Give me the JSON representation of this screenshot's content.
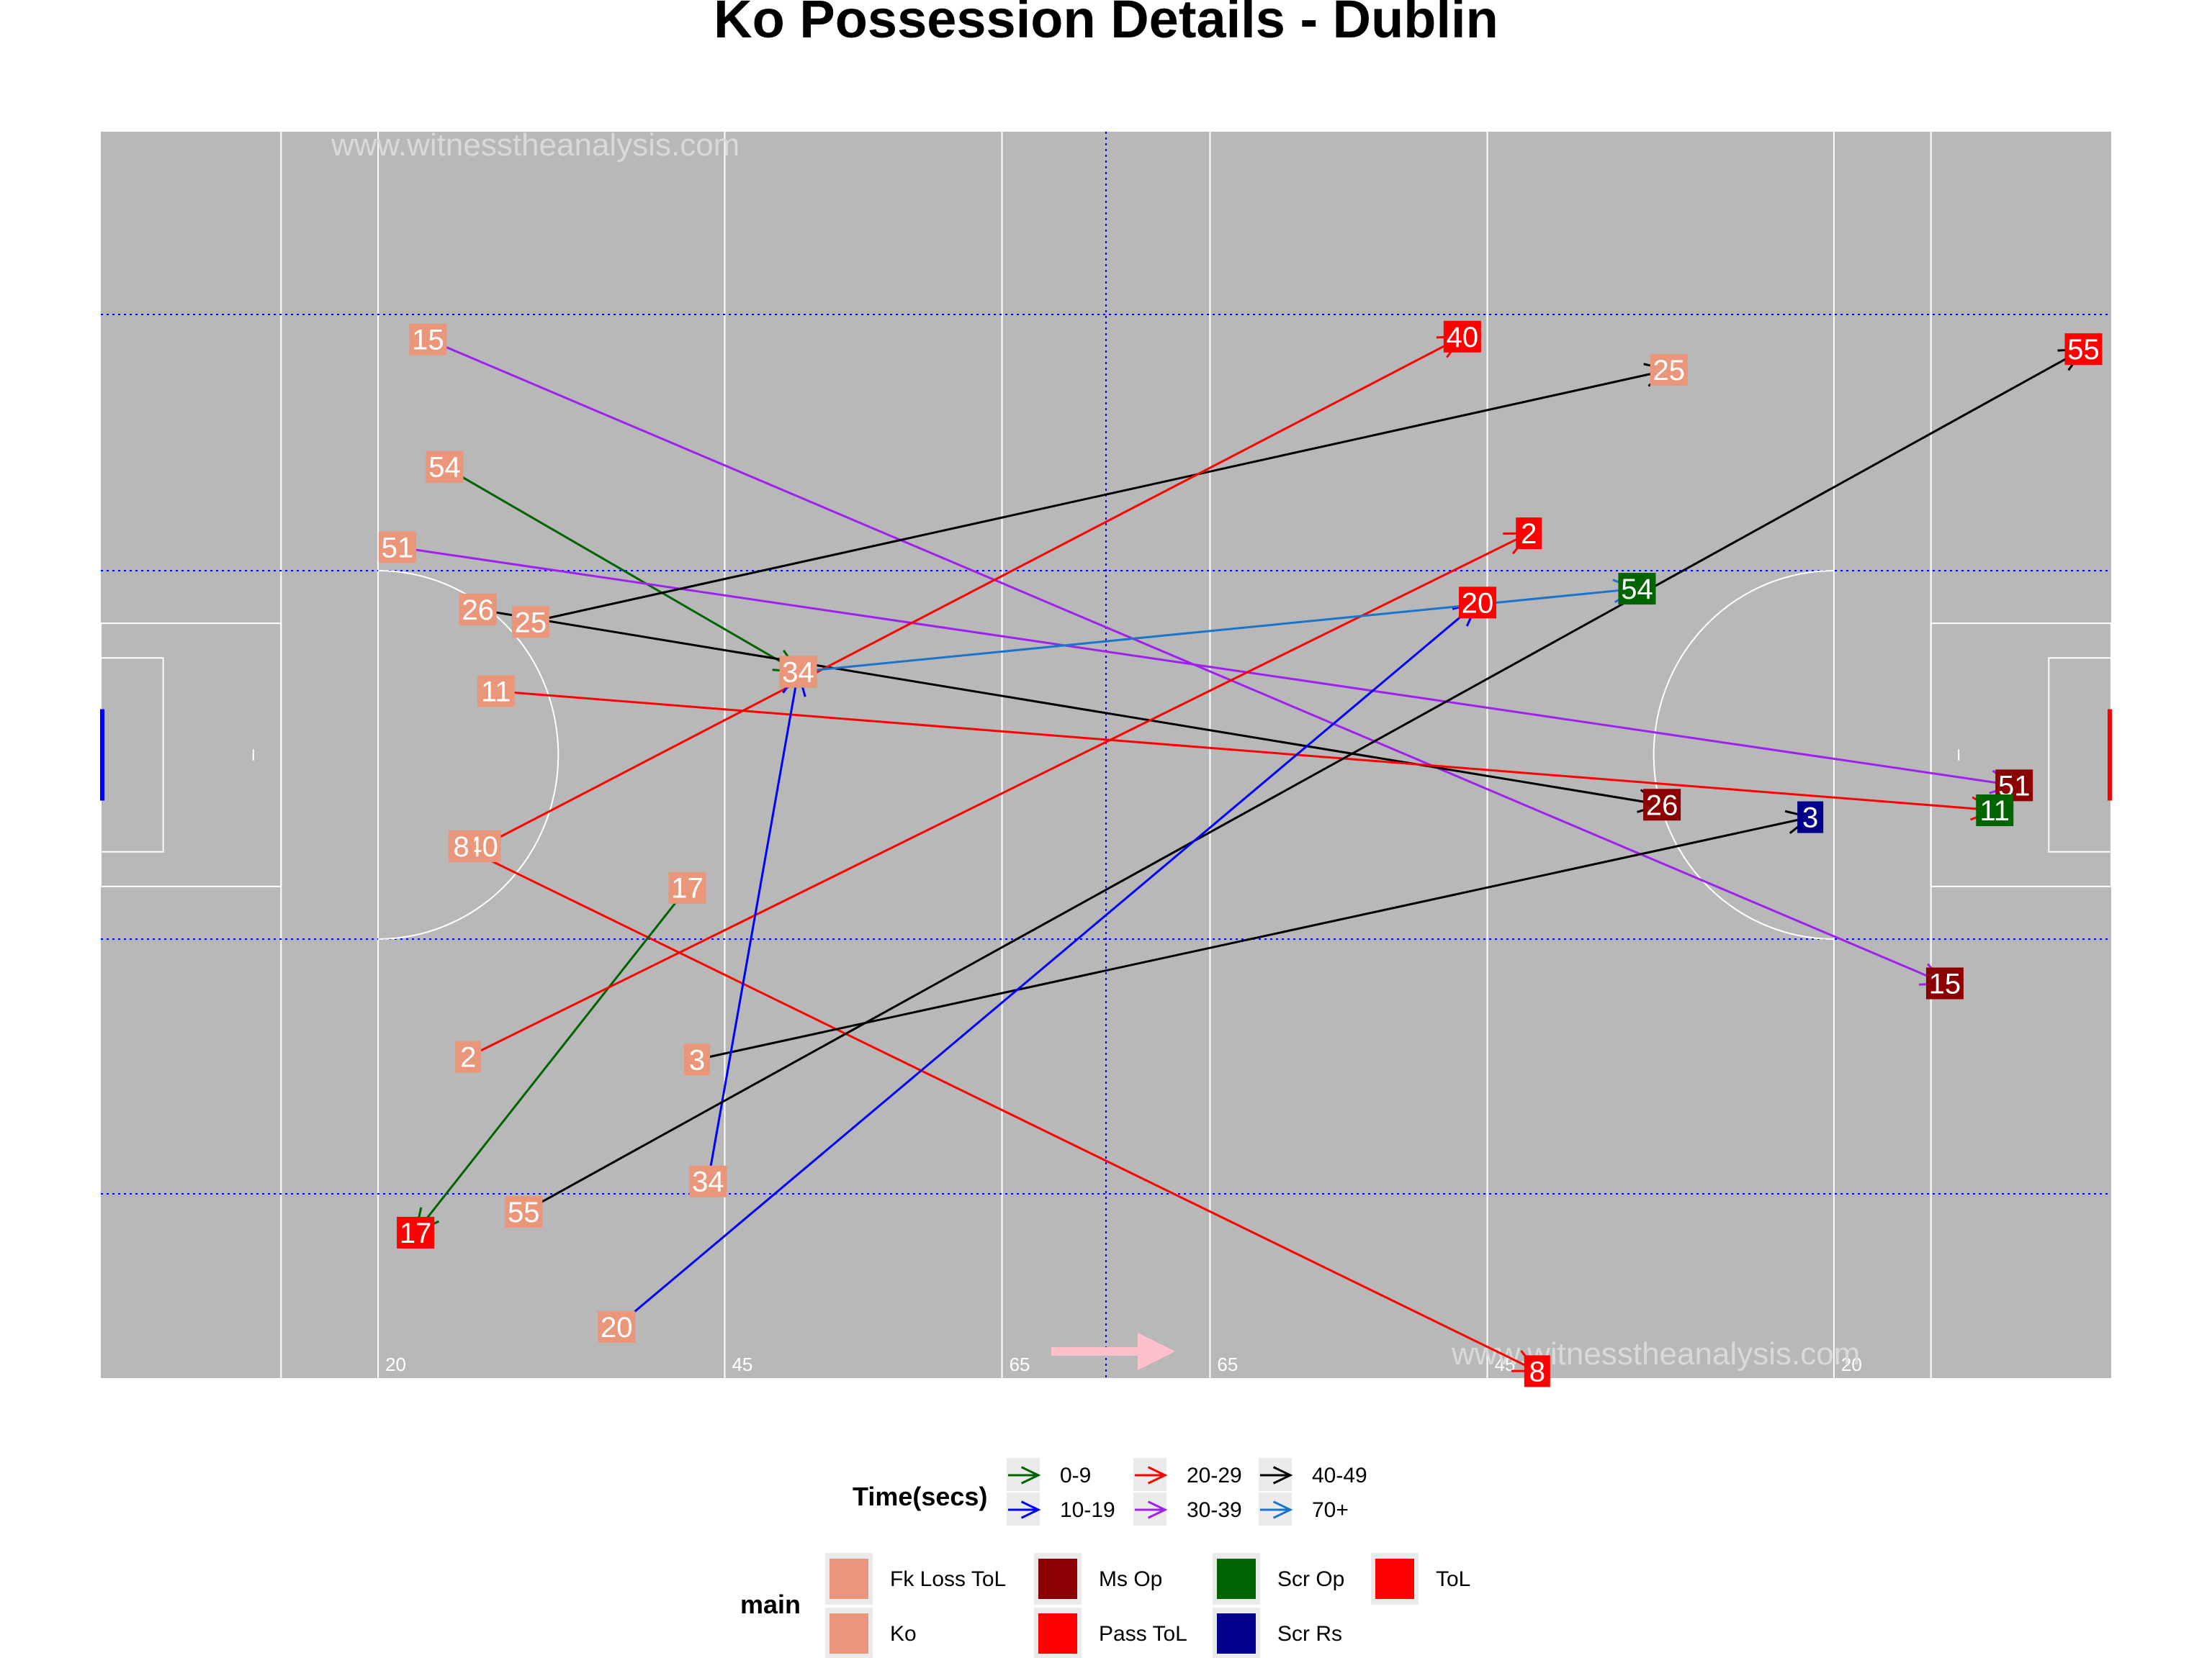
{
  "chart_data": {
    "type": "scatter",
    "title": "Ko Possession Details - Dublin",
    "watermarks": [
      "www.witnesstheanalysis.com",
      "www.witnesstheanalysis.com"
    ],
    "xlim": [
      0,
      145
    ],
    "ylim": [
      0,
      90
    ],
    "pitch_marks": [
      "20",
      "45",
      "65",
      "65",
      "45",
      "20"
    ],
    "direction_arrow_color": "#ffc0cb",
    "pitch_color": "#b8b8b8",
    "time_legend": {
      "title": "Time(secs)",
      "items": [
        {
          "label": "0-9",
          "color": "#006400"
        },
        {
          "label": "10-19",
          "color": "#0000ff"
        },
        {
          "label": "20-29",
          "color": "#ff0000"
        },
        {
          "label": "30-39",
          "color": "#a020f0"
        },
        {
          "label": "40-49",
          "color": "#000000"
        },
        {
          "label": "70+",
          "color": "#1874cd"
        }
      ]
    },
    "main_legend": {
      "title": "main",
      "items": [
        {
          "label": "Fk Loss ToL",
          "color": "#e9967a"
        },
        {
          "label": "Ko",
          "color": "#e9967a"
        },
        {
          "label": "Ms Op",
          "color": "#8b0000"
        },
        {
          "label": "Pass ToL",
          "color": "#ff0000"
        },
        {
          "label": "Scr Op",
          "color": "#006400"
        },
        {
          "label": "Scr Rs",
          "color": "#00008b"
        },
        {
          "label": "ToL",
          "color": "#ff0000"
        }
      ]
    },
    "possessions": [
      {
        "id": "15",
        "start": [
          23.6,
          75.0
        ],
        "end": [
          133.0,
          28.5
        ],
        "time": "30-39",
        "outcome": "Ms Op"
      },
      {
        "id": "54",
        "start": [
          24.8,
          65.8
        ],
        "end": [
          50.3,
          51.0
        ],
        "time": "0-9",
        "outcome": "Scr Op"
      },
      {
        "id": "51",
        "start": [
          21.4,
          60.0
        ],
        "end": [
          138.0,
          42.8
        ],
        "time": "30-39",
        "outcome": "Ms Op"
      },
      {
        "id": "26",
        "start": [
          27.2,
          55.5
        ],
        "end": [
          112.6,
          41.4
        ],
        "time": "40-49",
        "outcome": "Ms Op"
      },
      {
        "id": "25",
        "start": [
          31.0,
          54.6
        ],
        "end": [
          113.1,
          72.8
        ],
        "time": "40-49",
        "outcome": "Ko"
      },
      {
        "id": "11",
        "start": [
          28.5,
          49.6
        ],
        "end": [
          136.6,
          41.0
        ],
        "time": "20-29",
        "outcome": "Scr Op"
      },
      {
        "id": "40",
        "start": [
          27.5,
          38.4
        ],
        "end": [
          98.2,
          75.2
        ],
        "time": "20-29",
        "outcome": "ToL"
      },
      {
        "id": "8",
        "start": [
          26.0,
          38.4
        ],
        "end": [
          103.6,
          0.5
        ],
        "time": "20-29",
        "outcome": "ToL"
      },
      {
        "id": "17",
        "start": [
          42.3,
          35.4
        ],
        "end": [
          22.7,
          10.5
        ],
        "time": "0-9",
        "outcome": "ToL"
      },
      {
        "id": "2",
        "start": [
          26.5,
          23.2
        ],
        "end": [
          103.0,
          61.0
        ],
        "time": "20-29",
        "outcome": "ToL"
      },
      {
        "id": "3",
        "start": [
          43.0,
          23.0
        ],
        "end": [
          123.3,
          40.5
        ],
        "time": "40-49",
        "outcome": "Scr Rs"
      },
      {
        "id": "34",
        "start": [
          43.8,
          14.2
        ],
        "end": [
          50.3,
          51.0
        ],
        "time": "10-19",
        "outcome": "Ko"
      },
      {
        "id": "55",
        "start": [
          30.5,
          12.0
        ],
        "end": [
          143.0,
          74.3
        ],
        "time": "40-49",
        "outcome": "ToL"
      },
      {
        "id": "20",
        "start": [
          37.2,
          3.7
        ],
        "end": [
          99.3,
          56.0
        ],
        "time": "10-19",
        "outcome": "Pass ToL"
      },
      {
        "id": "54",
        "start": [
          50.3,
          51.0
        ],
        "end": [
          110.8,
          57.0
        ],
        "time": "70+",
        "outcome": "Scr Op"
      }
    ]
  }
}
